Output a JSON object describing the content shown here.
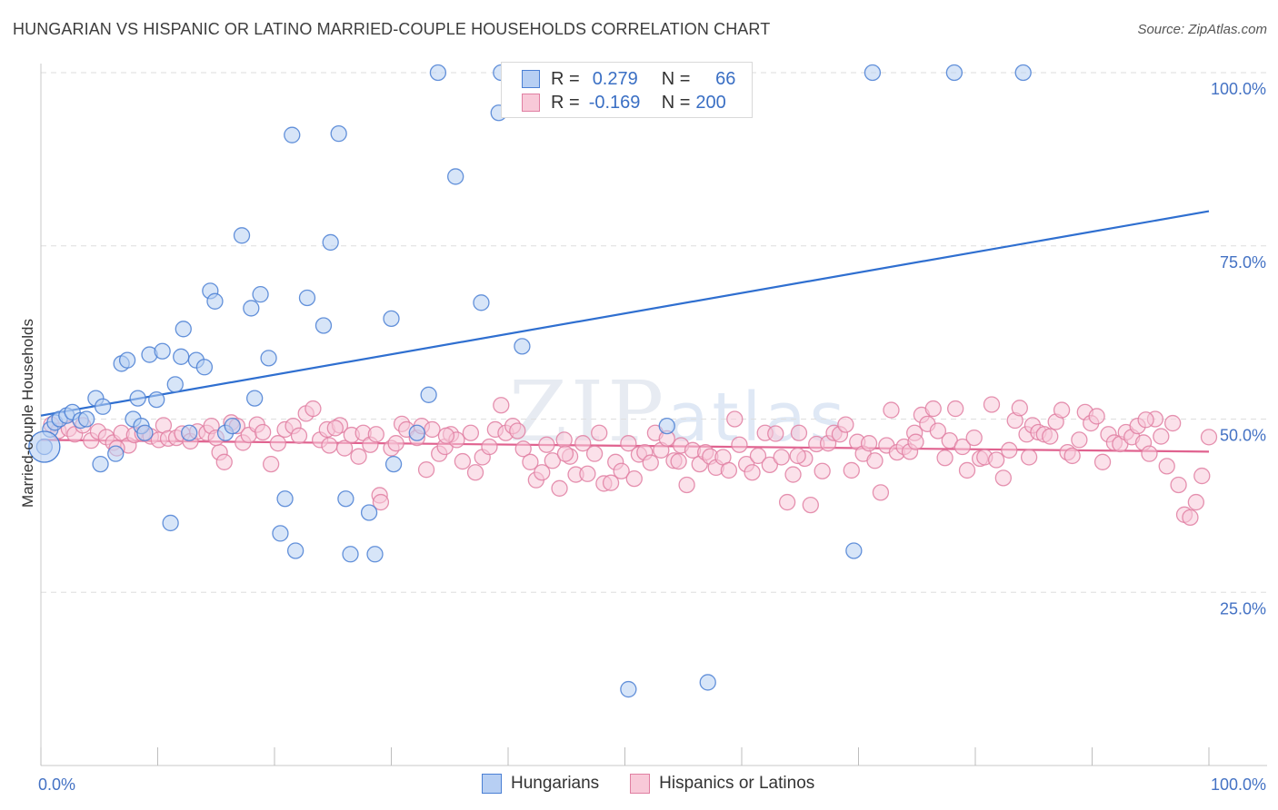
{
  "title": "HUNGARIAN VS HISPANIC OR LATINO MARRIED-COUPLE HOUSEHOLDS CORRELATION CHART",
  "source": "Source: ZipAtlas.com",
  "watermark": {
    "zip": "ZIP",
    "atlas": "atlas"
  },
  "legend": {
    "rows": [
      {
        "r_label": "R =",
        "r_value": "0.279",
        "n_label": "N =",
        "n_value": "66",
        "color": "#4a7fd4",
        "fill": "#b7cff3"
      },
      {
        "r_label": "R =",
        "r_value": "-0.169",
        "n_label": "N =",
        "n_value": "200",
        "color": "#e07fa2",
        "fill": "#f8c9d8"
      }
    ]
  },
  "bottom_legend": [
    {
      "label": "Hungarians",
      "color": "#4a7fd4",
      "fill": "#b7cff3"
    },
    {
      "label": "Hispanics or Latinos",
      "color": "#e07fa2",
      "fill": "#f8c9d8"
    }
  ],
  "chart_data": {
    "type": "scatter",
    "title": "HUNGARIAN VS HISPANIC OR LATINO MARRIED-COUPLE HOUSEHOLDS CORRELATION CHART",
    "xlabel": "",
    "ylabel": "Married-couple Households",
    "xlim": [
      0,
      100
    ],
    "ylim": [
      0,
      100
    ],
    "x_tick_labels": [
      "0.0%",
      "100.0%"
    ],
    "y_ticks": [
      25,
      50,
      75,
      100
    ],
    "y_tick_labels": [
      "25.0%",
      "50.0%",
      "75.0%",
      "100.0%"
    ],
    "grid": true,
    "legend_position": "top-center",
    "series": [
      {
        "name": "Hungarians",
        "color": "#4a7fd4",
        "fill": "#b7cff3",
        "trend": {
          "x": [
            0,
            100
          ],
          "y": [
            50.5,
            80.0
          ]
        },
        "points": [
          [
            0.3,
            46.0
          ],
          [
            0.8,
            48.5
          ],
          [
            1.2,
            49.5
          ],
          [
            1.6,
            50.0
          ],
          [
            2.2,
            50.5
          ],
          [
            2.7,
            51.0
          ],
          [
            3.4,
            49.8
          ],
          [
            3.9,
            50.0
          ],
          [
            4.7,
            53.0
          ],
          [
            5.3,
            51.8
          ],
          [
            5.1,
            43.5
          ],
          [
            6.4,
            45.0
          ],
          [
            6.9,
            58.0
          ],
          [
            7.4,
            58.5
          ],
          [
            7.9,
            50.0
          ],
          [
            8.3,
            53.0
          ],
          [
            8.6,
            49.0
          ],
          [
            8.9,
            48.0
          ],
          [
            9.3,
            59.3
          ],
          [
            9.9,
            52.8
          ],
          [
            10.4,
            59.8
          ],
          [
            11.1,
            35.0
          ],
          [
            11.5,
            55.0
          ],
          [
            12.2,
            63.0
          ],
          [
            12.0,
            59.0
          ],
          [
            12.7,
            48.0
          ],
          [
            13.3,
            58.5
          ],
          [
            14.0,
            57.5
          ],
          [
            14.5,
            68.5
          ],
          [
            14.9,
            67.0
          ],
          [
            15.8,
            48.0
          ],
          [
            16.4,
            49.0
          ],
          [
            17.2,
            76.5
          ],
          [
            18.0,
            66.0
          ],
          [
            18.3,
            53.0
          ],
          [
            18.8,
            68.0
          ],
          [
            19.5,
            58.8
          ],
          [
            20.5,
            33.5
          ],
          [
            20.9,
            38.5
          ],
          [
            21.5,
            91.0
          ],
          [
            21.8,
            31.0
          ],
          [
            22.8,
            67.5
          ],
          [
            24.2,
            63.5
          ],
          [
            24.8,
            75.5
          ],
          [
            25.5,
            91.2
          ],
          [
            26.1,
            38.5
          ],
          [
            26.5,
            30.5
          ],
          [
            28.1,
            36.5
          ],
          [
            28.6,
            30.5
          ],
          [
            30.0,
            64.5
          ],
          [
            30.2,
            43.5
          ],
          [
            32.2,
            48.0
          ],
          [
            33.2,
            53.5
          ],
          [
            34.0,
            100.0
          ],
          [
            35.5,
            85.0
          ],
          [
            37.7,
            66.8
          ],
          [
            39.2,
            94.2
          ],
          [
            39.4,
            100.0
          ],
          [
            41.1,
            96.5
          ],
          [
            41.2,
            60.5
          ],
          [
            50.3,
            11.0
          ],
          [
            53.6,
            49.0
          ],
          [
            57.1,
            12.0
          ],
          [
            71.2,
            100.0
          ],
          [
            69.6,
            31.0
          ],
          [
            78.2,
            100.0
          ],
          [
            84.1,
            100.0
          ]
        ]
      },
      {
        "name": "Hispanics or Latinos",
        "color": "#e07fa2",
        "fill": "#f8c9d8",
        "trend": {
          "x": [
            0,
            100
          ],
          "y": [
            47.0,
            45.3
          ]
        },
        "points": [
          [
            0.9,
            49.2
          ],
          [
            1.5,
            48.3
          ],
          [
            2.4,
            48.6
          ],
          [
            2.9,
            47.8
          ],
          [
            3.6,
            49.1
          ],
          [
            4.3,
            46.9
          ],
          [
            4.9,
            48.2
          ],
          [
            5.6,
            47.4
          ],
          [
            6.2,
            46.6
          ],
          [
            6.9,
            48.0
          ],
          [
            7.5,
            46.2
          ],
          [
            8.0,
            47.7
          ],
          [
            8.7,
            47.9
          ],
          [
            9.4,
            47.5
          ],
          [
            10.1,
            47.0
          ],
          [
            10.5,
            49.1
          ],
          [
            10.9,
            47.2
          ],
          [
            11.6,
            47.3
          ],
          [
            12.1,
            47.9
          ],
          [
            12.8,
            46.8
          ],
          [
            13.4,
            48.2
          ],
          [
            14.2,
            48.0
          ],
          [
            14.6,
            49.0
          ],
          [
            15.3,
            45.2
          ],
          [
            15.7,
            43.8
          ],
          [
            16.3,
            49.5
          ],
          [
            16.8,
            49.0
          ],
          [
            17.3,
            46.6
          ],
          [
            17.8,
            47.7
          ],
          [
            18.5,
            49.2
          ],
          [
            19.0,
            48.1
          ],
          [
            19.7,
            43.5
          ],
          [
            20.3,
            46.5
          ],
          [
            20.9,
            48.5
          ],
          [
            21.6,
            49.0
          ],
          [
            22.1,
            47.6
          ],
          [
            22.7,
            50.8
          ],
          [
            23.3,
            51.5
          ],
          [
            23.9,
            47.0
          ],
          [
            24.5,
            48.5
          ],
          [
            24.7,
            46.2
          ],
          [
            25.6,
            49.1
          ],
          [
            26.0,
            45.8
          ],
          [
            26.6,
            47.7
          ],
          [
            27.2,
            44.6
          ],
          [
            27.6,
            48.0
          ],
          [
            28.2,
            46.3
          ],
          [
            28.7,
            47.8
          ],
          [
            29.0,
            39.0
          ],
          [
            29.1,
            38.0
          ],
          [
            30.0,
            45.8
          ],
          [
            30.4,
            46.5
          ],
          [
            30.9,
            49.3
          ],
          [
            31.3,
            48.5
          ],
          [
            32.2,
            47.3
          ],
          [
            32.6,
            49.0
          ],
          [
            33.0,
            42.7
          ],
          [
            33.5,
            48.5
          ],
          [
            34.1,
            45.0
          ],
          [
            34.6,
            46.0
          ],
          [
            35.1,
            47.8
          ],
          [
            35.6,
            47.0
          ],
          [
            36.1,
            43.9
          ],
          [
            36.8,
            48.0
          ],
          [
            37.2,
            42.3
          ],
          [
            37.8,
            44.5
          ],
          [
            38.4,
            46.0
          ],
          [
            38.9,
            48.5
          ],
          [
            39.4,
            52.0
          ],
          [
            39.8,
            48.0
          ],
          [
            40.4,
            49.0
          ],
          [
            40.8,
            48.3
          ],
          [
            41.3,
            45.7
          ],
          [
            41.9,
            43.8
          ],
          [
            42.4,
            41.2
          ],
          [
            42.9,
            42.3
          ],
          [
            43.3,
            46.3
          ],
          [
            43.8,
            44.0
          ],
          [
            44.4,
            40.0
          ],
          [
            44.8,
            47.0
          ],
          [
            45.3,
            44.6
          ],
          [
            45.8,
            42.0
          ],
          [
            46.4,
            46.5
          ],
          [
            46.8,
            42.1
          ],
          [
            47.4,
            45.0
          ],
          [
            47.8,
            48.0
          ],
          [
            48.2,
            40.7
          ],
          [
            48.8,
            40.8
          ],
          [
            49.2,
            43.8
          ],
          [
            49.7,
            42.5
          ],
          [
            50.3,
            46.5
          ],
          [
            50.8,
            41.4
          ],
          [
            51.2,
            44.9
          ],
          [
            51.7,
            45.2
          ],
          [
            52.2,
            43.7
          ],
          [
            52.6,
            48.0
          ],
          [
            53.1,
            45.5
          ],
          [
            53.6,
            47.2
          ],
          [
            54.2,
            44.0
          ],
          [
            54.8,
            46.2
          ],
          [
            55.3,
            40.5
          ],
          [
            55.8,
            45.5
          ],
          [
            56.4,
            43.5
          ],
          [
            56.9,
            45.2
          ],
          [
            57.3,
            44.6
          ],
          [
            57.8,
            43.0
          ],
          [
            58.4,
            44.5
          ],
          [
            58.9,
            42.6
          ],
          [
            59.4,
            50.0
          ],
          [
            59.8,
            46.3
          ],
          [
            60.4,
            43.5
          ],
          [
            60.9,
            42.3
          ],
          [
            61.4,
            44.7
          ],
          [
            62.0,
            48.0
          ],
          [
            62.4,
            43.4
          ],
          [
            62.9,
            47.9
          ],
          [
            63.4,
            44.5
          ],
          [
            63.9,
            38.0
          ],
          [
            64.4,
            42.0
          ],
          [
            64.9,
            48.0
          ],
          [
            65.4,
            44.3
          ],
          [
            65.9,
            37.6
          ],
          [
            66.4,
            46.4
          ],
          [
            66.9,
            42.5
          ],
          [
            67.4,
            46.5
          ],
          [
            67.9,
            48.0
          ],
          [
            68.4,
            47.8
          ],
          [
            68.9,
            49.2
          ],
          [
            69.4,
            42.6
          ],
          [
            69.9,
            46.7
          ],
          [
            70.4,
            45.0
          ],
          [
            70.9,
            46.5
          ],
          [
            71.4,
            44.0
          ],
          [
            71.9,
            39.4
          ],
          [
            72.4,
            46.2
          ],
          [
            72.8,
            51.3
          ],
          [
            73.3,
            45.2
          ],
          [
            73.9,
            46.0
          ],
          [
            74.4,
            45.3
          ],
          [
            74.8,
            48.0
          ],
          [
            75.4,
            50.6
          ],
          [
            75.9,
            49.3
          ],
          [
            76.4,
            51.5
          ],
          [
            76.8,
            48.3
          ],
          [
            77.4,
            44.4
          ],
          [
            77.8,
            46.9
          ],
          [
            78.3,
            51.5
          ],
          [
            78.9,
            46.0
          ],
          [
            79.3,
            42.6
          ],
          [
            79.9,
            47.3
          ],
          [
            80.4,
            44.3
          ],
          [
            80.8,
            44.5
          ],
          [
            81.4,
            52.1
          ],
          [
            81.8,
            44.1
          ],
          [
            82.4,
            41.5
          ],
          [
            82.9,
            45.5
          ],
          [
            83.4,
            49.8
          ],
          [
            83.8,
            51.6
          ],
          [
            84.4,
            47.8
          ],
          [
            84.9,
            49.1
          ],
          [
            85.4,
            48.1
          ],
          [
            85.9,
            47.8
          ],
          [
            86.4,
            47.5
          ],
          [
            86.9,
            49.6
          ],
          [
            87.4,
            51.3
          ],
          [
            87.9,
            45.2
          ],
          [
            88.3,
            44.7
          ],
          [
            88.9,
            47.0
          ],
          [
            89.4,
            51.0
          ],
          [
            89.9,
            49.4
          ],
          [
            90.4,
            50.4
          ],
          [
            90.9,
            43.8
          ],
          [
            91.4,
            47.8
          ],
          [
            91.9,
            46.6
          ],
          [
            92.4,
            46.4
          ],
          [
            92.9,
            48.1
          ],
          [
            93.4,
            47.4
          ],
          [
            93.9,
            49.0
          ],
          [
            94.4,
            46.6
          ],
          [
            94.9,
            45.0
          ],
          [
            95.4,
            50.0
          ],
          [
            95.9,
            47.5
          ],
          [
            96.4,
            43.2
          ],
          [
            96.9,
            49.4
          ],
          [
            97.4,
            40.5
          ],
          [
            97.9,
            36.2
          ],
          [
            98.4,
            35.8
          ],
          [
            98.9,
            38.0
          ],
          [
            99.4,
            41.8
          ],
          [
            100.0,
            47.4
          ],
          [
            6.5,
            45.8
          ],
          [
            15.0,
            47.3
          ],
          [
            25.2,
            48.7
          ],
          [
            34.7,
            47.6
          ],
          [
            44.9,
            45.0
          ],
          [
            54.6,
            43.9
          ],
          [
            64.8,
            44.7
          ],
          [
            74.9,
            46.7
          ],
          [
            84.6,
            44.5
          ],
          [
            94.6,
            49.9
          ]
        ]
      }
    ]
  }
}
